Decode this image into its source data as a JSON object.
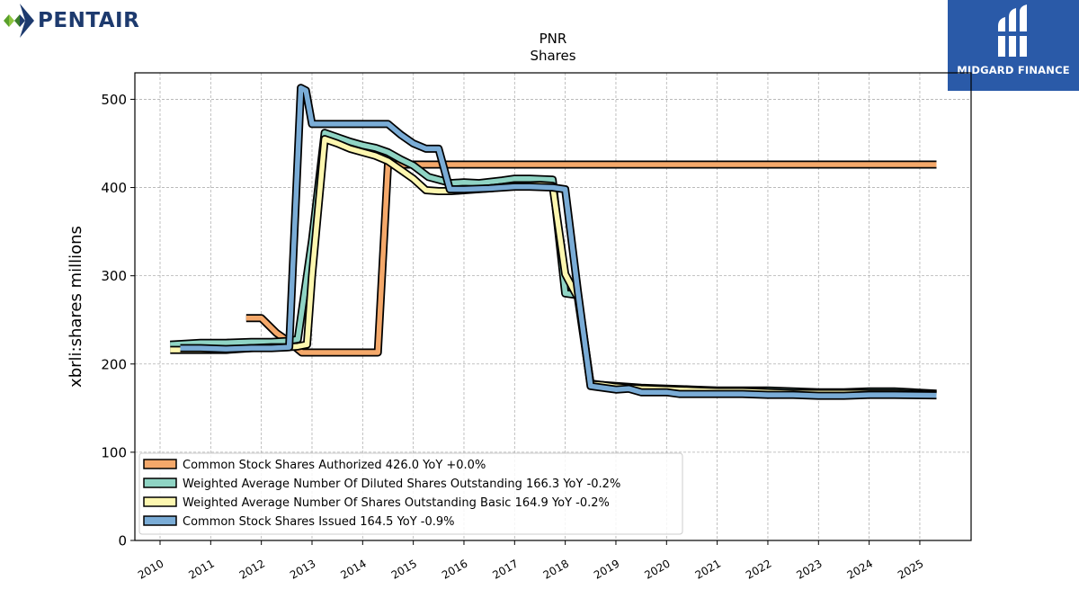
{
  "brand_left": {
    "name": "PENTAIR",
    "icon": "pentair-logo-icon",
    "color": "#1d3a6e"
  },
  "brand_right": {
    "name": "MIDGARD FINANCE",
    "icon": "midgard-logo-icon",
    "color": "#2a5aa8"
  },
  "chart_data": {
    "type": "line",
    "title": "PNR",
    "subtitle": "Shares",
    "xlabel": "",
    "ylabel": "xbrli:shares millions",
    "xlim": [
      2009.55,
      2025.95
    ],
    "ylim": [
      0,
      530
    ],
    "yticks": [
      0,
      100,
      200,
      300,
      400,
      500
    ],
    "xticks": [
      "2010",
      "2011",
      "2012",
      "2013",
      "2014",
      "2015",
      "2016",
      "2017",
      "2018",
      "2019",
      "2020",
      "2021",
      "2022",
      "2023",
      "2024",
      "2025"
    ],
    "grid": true,
    "legend_position": "lower-left",
    "series": [
      {
        "name": "Common Stock Shares Authorized",
        "legend_label": "Common Stock Shares Authorized  426.0 YoY +0.0%",
        "color": "#f4a86a",
        "x": [
          2011.7,
          2012.0,
          2012.3,
          2012.55,
          2012.8,
          2013.0,
          2013.5,
          2014.0,
          2014.2,
          2014.3,
          2014.5,
          2015.0,
          2016.0,
          2017.0,
          2018.0,
          2019.0,
          2020.0,
          2021.0,
          2022.0,
          2023.0,
          2024.0,
          2025.33
        ],
        "y": [
          252,
          252,
          235,
          225,
          213,
          213,
          213,
          213,
          213,
          213,
          426,
          426,
          426,
          426,
          426,
          426,
          426,
          426,
          426,
          426,
          426,
          426
        ]
      },
      {
        "name": "Weighted Average Number Of Diluted Shares Outstanding",
        "legend_label": "Weighted Average Number Of Diluted Shares Outstanding  166.3 YoY -0.2%",
        "color": "#8fd4c4",
        "x": [
          2010.2,
          2010.8,
          2011.3,
          2011.8,
          2012.2,
          2012.5,
          2012.72,
          2013.0,
          2013.25,
          2013.5,
          2013.75,
          2014.0,
          2014.25,
          2014.5,
          2014.75,
          2015.0,
          2015.3,
          2015.75,
          2016.0,
          2016.3,
          2016.75,
          2017.0,
          2017.3,
          2017.75,
          2018.0,
          2018.25,
          2018.5,
          2018.75,
          2019.0,
          2019.25,
          2019.5,
          2020.0,
          2020.5,
          2021.0,
          2021.5,
          2022.0,
          2022.5,
          2023.0,
          2023.5,
          2024.0,
          2024.5,
          2025.33
        ],
        "y": [
          222,
          224,
          224,
          225,
          225,
          226,
          228,
          340,
          462,
          457,
          452,
          448,
          445,
          440,
          432,
          425,
          412,
          405,
          406,
          405,
          408,
          410,
          410,
          409,
          280,
          278,
          178,
          176,
          175,
          174,
          173,
          172,
          171,
          170,
          170,
          170,
          169,
          168,
          168,
          169,
          169,
          166.3
        ]
      },
      {
        "name": "Weighted Average Number Of Shares Outstanding Basic",
        "legend_label": "Weighted Average Number Of Shares Outstanding Basic  164.9 YoY -0.2%",
        "color": "#fdf7b0",
        "x": [
          2010.2,
          2010.8,
          2011.3,
          2011.8,
          2012.2,
          2012.5,
          2012.72,
          2012.9,
          2013.0,
          2013.25,
          2013.5,
          2013.75,
          2014.0,
          2014.25,
          2014.5,
          2014.75,
          2015.0,
          2015.25,
          2015.5,
          2015.75,
          2016.0,
          2016.5,
          2017.0,
          2017.5,
          2017.75,
          2018.0,
          2018.25,
          2018.5,
          2018.75,
          2019.0,
          2019.5,
          2020.0,
          2020.5,
          2021.0,
          2021.5,
          2022.0,
          2022.5,
          2023.0,
          2023.5,
          2024.0,
          2024.5,
          2025.33
        ],
        "y": [
          216,
          216,
          216,
          218,
          219,
          219,
          220,
          222,
          300,
          455,
          450,
          444,
          440,
          436,
          430,
          420,
          410,
          397,
          396,
          396,
          397,
          399,
          402,
          403,
          402,
          302,
          275,
          177,
          176,
          174,
          172,
          171,
          170,
          169,
          169,
          168,
          167,
          167,
          167,
          167,
          167,
          164.9
        ]
      },
      {
        "name": "Common Stock Shares Issued",
        "legend_label": "Common Stock Shares Issued  164.5 YoY -0.9%",
        "color": "#7aacd6",
        "x": [
          2010.4,
          2010.8,
          2011.3,
          2011.8,
          2012.2,
          2012.55,
          2012.68,
          2012.78,
          2012.88,
          2013.0,
          2013.5,
          2014.0,
          2014.5,
          2014.75,
          2015.0,
          2015.25,
          2015.5,
          2015.72,
          2016.0,
          2016.5,
          2017.0,
          2017.3,
          2017.75,
          2018.0,
          2018.25,
          2018.5,
          2019.0,
          2019.25,
          2019.5,
          2020.0,
          2020.25,
          2020.5,
          2021.0,
          2021.5,
          2022.0,
          2022.5,
          2023.0,
          2023.5,
          2024.0,
          2024.5,
          2025.33
        ],
        "y": [
          218,
          218,
          217,
          218,
          218,
          219,
          385,
          513,
          510,
          472,
          472,
          472,
          472,
          460,
          450,
          444,
          444,
          398,
          398,
          399,
          401,
          401,
          400,
          398,
          282,
          175,
          171,
          172,
          168,
          168,
          166,
          166,
          166,
          166,
          165,
          165,
          164,
          164,
          165,
          165,
          164.5
        ]
      }
    ]
  }
}
